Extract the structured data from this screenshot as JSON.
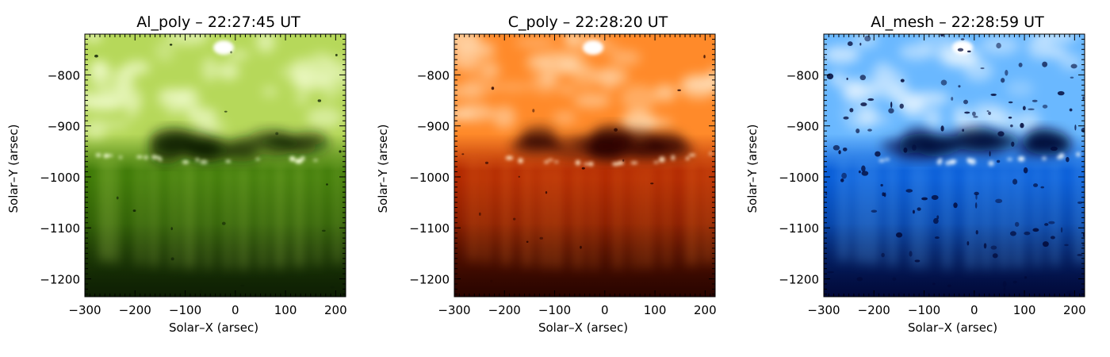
{
  "panels": [
    {
      "title": "Al_poly – 22:27:45 UT",
      "xlabel": "Solar–X (arsec)",
      "ylabel": "Solar–Y (arsec)",
      "palette": {
        "dark": "#0e1f04",
        "mid": "#3f7a08",
        "bright": "#b6d85a",
        "white": "#f6ffd8"
      },
      "x_ticks": [
        "−300",
        "−200",
        "−100",
        "0",
        "100",
        "200"
      ],
      "y_ticks": [
        "−800",
        "−900",
        "−1000",
        "−1100",
        "−1200"
      ]
    },
    {
      "title": "C_poly – 22:28:20 UT",
      "xlabel": "Solar–X (arsec)",
      "ylabel": "Solar–Y (arsec)",
      "palette": {
        "dark": "#2a0500",
        "mid": "#b22a02",
        "bright": "#ff8a2a",
        "white": "#ffe8c8"
      },
      "x_ticks": [
        "−300",
        "−200",
        "−100",
        "0",
        "100",
        "200"
      ],
      "y_ticks": [
        "−800",
        "−900",
        "−1000",
        "−1100",
        "−1200"
      ]
    },
    {
      "title": "Al_mesh – 22:28:59 UT",
      "xlabel": "Solar–X (arsec)",
      "ylabel": "Solar–Y (arsec)",
      "palette": {
        "dark": "#020a3a",
        "mid": "#0a5ed8",
        "bright": "#6ab8ff",
        "white": "#eef8ff"
      },
      "x_ticks": [
        "−300",
        "−200",
        "−100",
        "0",
        "100",
        "200"
      ],
      "y_ticks": [
        "−800",
        "−900",
        "−1000",
        "−1100",
        "−1200"
      ]
    }
  ]
}
